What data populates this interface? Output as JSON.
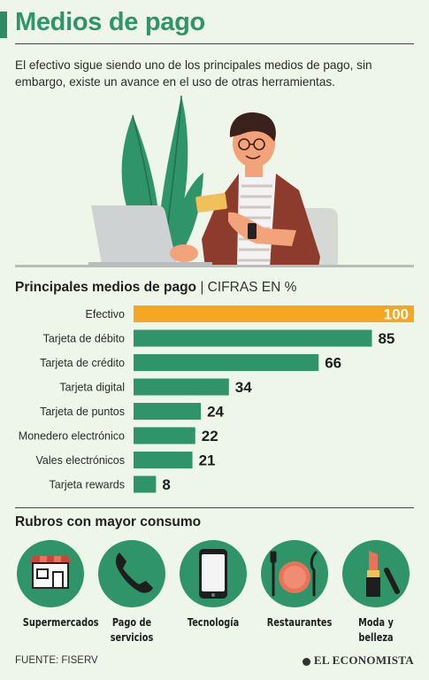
{
  "header": {
    "title": "Medios de pago",
    "intro": "El efectivo sigue siendo uno de los principales medios de pago, sin embargo, existe un avance en el uso de otras herramientas."
  },
  "chart_section": {
    "title": "Principales medios de pago",
    "subtitle": "| CIFRAS EN %"
  },
  "chart_data": {
    "type": "bar",
    "orientation": "horizontal",
    "unit": "%",
    "categories": [
      "Efectivo",
      "Tarjeta de débito",
      "Tarjeta de crédito",
      "Tarjeta digital",
      "Tarjeta de puntos",
      "Monedero electrónico",
      "Vales electrónicos",
      "Tarjeta rewards"
    ],
    "values": [
      100,
      85,
      66,
      34,
      24,
      22,
      21,
      8
    ],
    "xlim": [
      0,
      100
    ],
    "highlight_index": 0,
    "colors": {
      "highlight": "#f5a623",
      "bar": "#2f9468",
      "highlight_label": "#ffffff",
      "label": "#1e1e1e"
    },
    "grid": false
  },
  "consumption": {
    "title": "Rubros con mayor consumo",
    "items": [
      {
        "label": "Supermercados",
        "icon": "supermarket-icon"
      },
      {
        "label": "Pago de servicios",
        "icon": "phone-icon"
      },
      {
        "label": "Tecnología",
        "icon": "smartphone-icon"
      },
      {
        "label": "Restaurantes",
        "icon": "plate-cutlery-icon"
      },
      {
        "label": "Moda y belleza",
        "icon": "lipstick-icon"
      }
    ]
  },
  "footer": {
    "source": "FUENTE: FISERV",
    "brand": "EL ECONOMISTA"
  },
  "colors": {
    "background": "#eef6ea",
    "accent": "#2f9468",
    "highlight": "#f5a623"
  }
}
